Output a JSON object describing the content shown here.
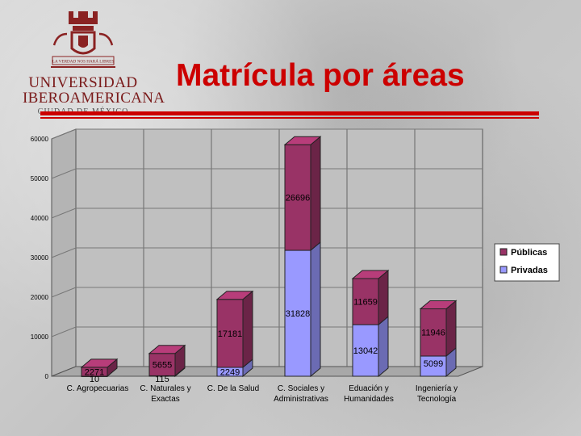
{
  "logo": {
    "motto": "LA VERDAD NOS HARÁ LIBRES",
    "line1": "UNIVERSIDAD",
    "line2": "IBEROAMERICANA",
    "line3": "CIUDAD DE MÉXICO"
  },
  "title": "Matrícula por áreas",
  "chart_data": {
    "type": "bar",
    "stacked": true,
    "categories": [
      [
        "C. Agropecuarias"
      ],
      [
        "C. Naturales y",
        "Exactas"
      ],
      [
        "C. De la Salud"
      ],
      [
        "C. Sociales y",
        "Administrativas"
      ],
      [
        "Eduación y",
        "Humanidades"
      ],
      [
        "Ingeniería y",
        "Tecnología"
      ]
    ],
    "series": [
      {
        "name": "Privadas",
        "values": [
          10,
          115,
          2249,
          31828,
          13042,
          5099
        ],
        "color": "#9999ff"
      },
      {
        "name": "Públicas",
        "values": [
          2271,
          5655,
          17181,
          26696,
          11659,
          11946
        ],
        "color": "#993366"
      }
    ],
    "ylim": [
      0,
      60000
    ],
    "yticks": [
      "0",
      "10000",
      "20000",
      "30000",
      "40000",
      "50000",
      "60000"
    ],
    "grid": true,
    "legend": "right",
    "legend_order": [
      "Públicas",
      "Privadas"
    ]
  }
}
